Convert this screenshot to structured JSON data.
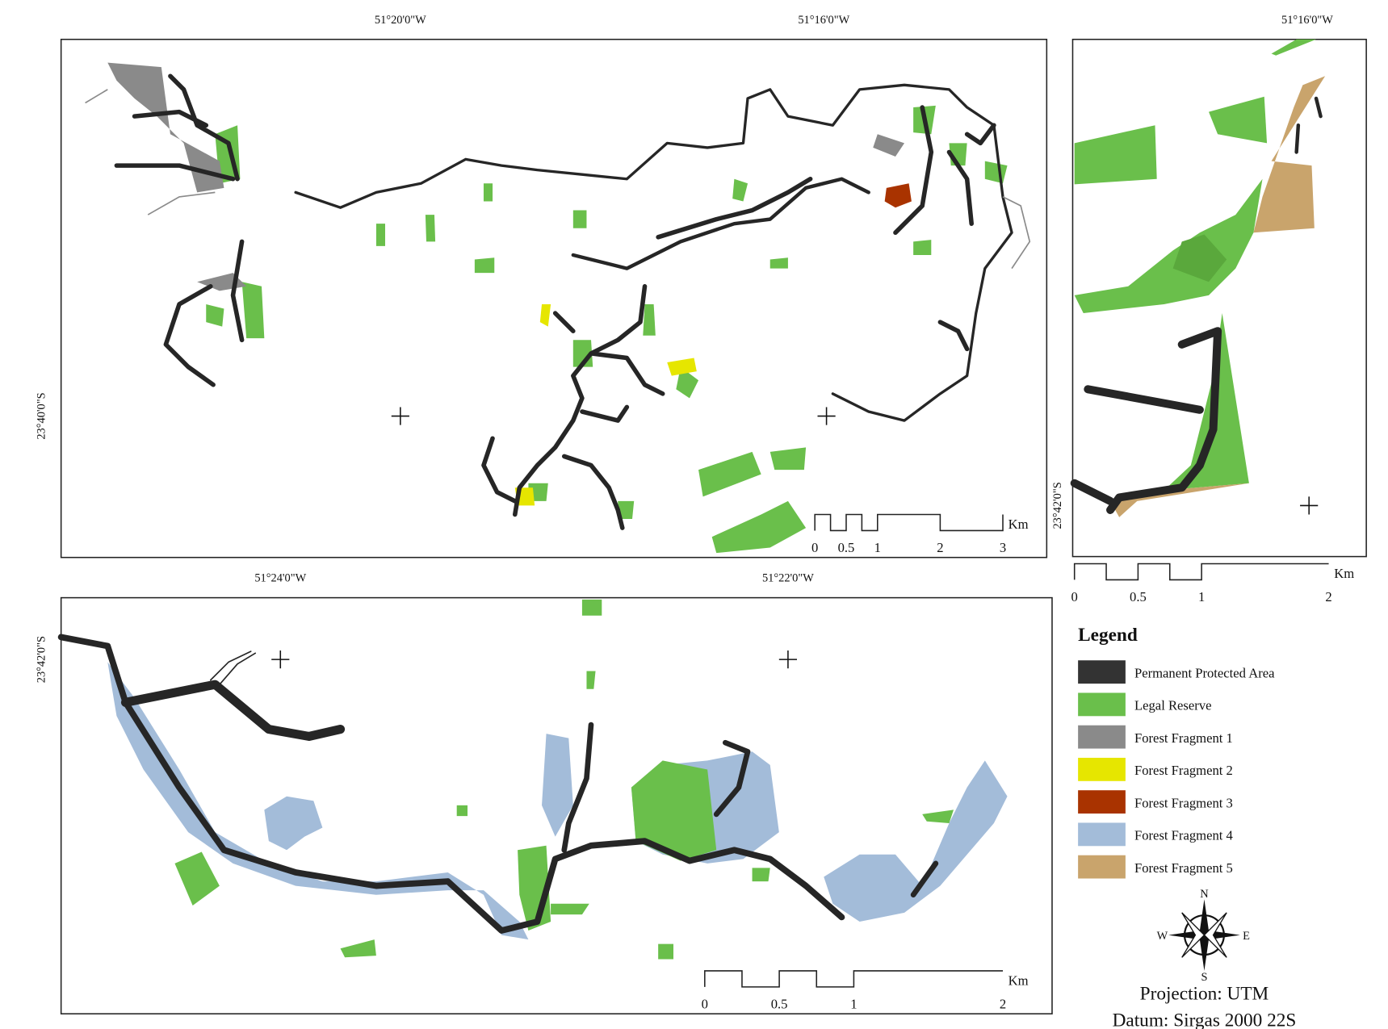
{
  "panels": [
    {
      "top_labels": [
        "51°20'0\"W",
        "51°16'0\"W"
      ],
      "left_label": "23°40'0\"S",
      "scale_bar": {
        "ticks": [
          0,
          0.5,
          1,
          2,
          3
        ],
        "unit": "Km"
      }
    },
    {
      "top_labels": [
        "51°16'0\"W"
      ],
      "left_label": "23°42'0\"S",
      "scale_bar": {
        "ticks": [
          0,
          0.5,
          1,
          2
        ],
        "unit": "Km"
      }
    },
    {
      "top_labels": [
        "51°24'0\"W",
        "51°22'0\"W"
      ],
      "left_label": "23°42'0\"S",
      "scale_bar": {
        "ticks": [
          0,
          0.5,
          1,
          2
        ],
        "unit": "Km"
      }
    }
  ],
  "legend": {
    "title": "Legend",
    "items": [
      {
        "label": "Permanent Protected Area",
        "color": "#333333"
      },
      {
        "label": "Legal Reserve",
        "color": "#6abf4b"
      },
      {
        "label": "Forest Fragment 1",
        "color": "#8a8a8a"
      },
      {
        "label": "Forest Fragment 2",
        "color": "#e6e600"
      },
      {
        "label": "Forest Fragment 3",
        "color": "#a93300"
      },
      {
        "label": "Forest Fragment 4",
        "color": "#a3bcd9"
      },
      {
        "label": "Forest Fragment 5",
        "color": "#c9a46c"
      }
    ]
  },
  "compass": {
    "n": "N",
    "s": "S",
    "e": "E",
    "w": "W"
  },
  "projection": "Projection: UTM",
  "datum": "Datum: Sirgas 2000 22S"
}
